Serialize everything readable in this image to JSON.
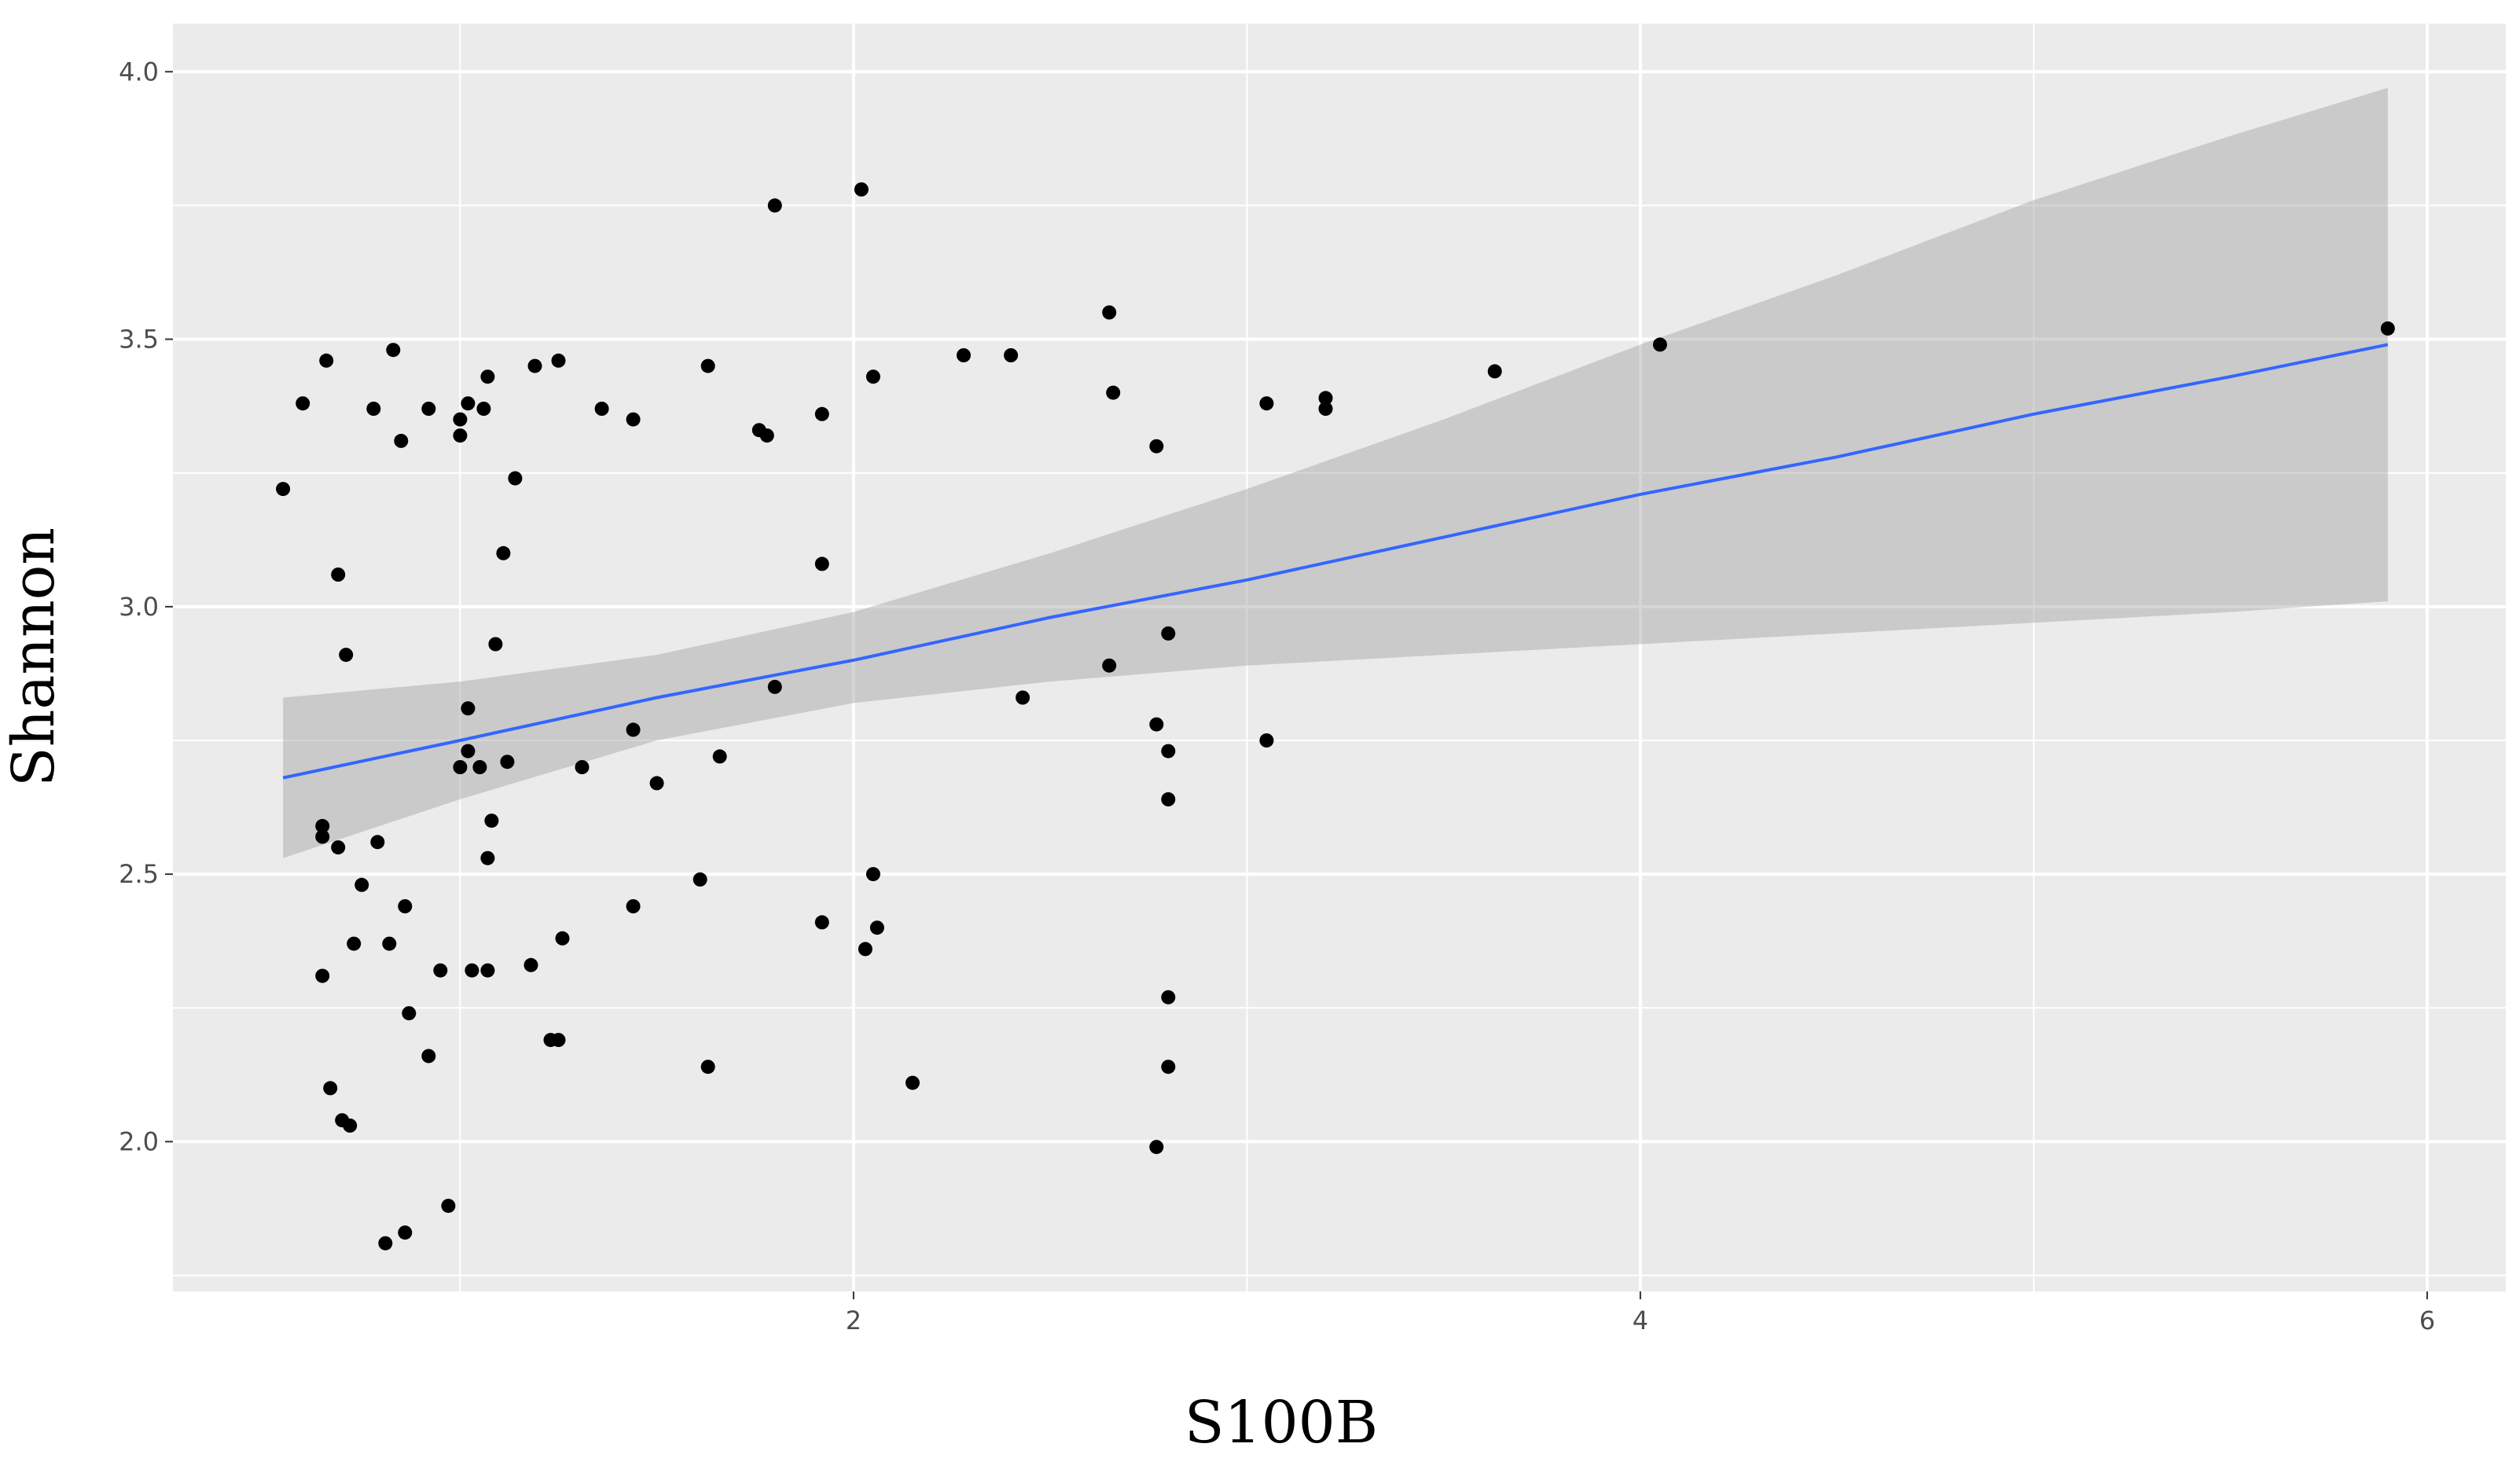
{
  "chart_data": {
    "type": "scatter",
    "title": "",
    "xlabel": "S100B",
    "ylabel": "Shannon",
    "xlim": [
      0.27,
      6.2
    ],
    "ylim": [
      1.72,
      4.09
    ],
    "x_ticks": [
      2,
      4,
      6
    ],
    "x_tick_labels": [
      "2",
      "4",
      "6"
    ],
    "y_ticks": [
      2.0,
      2.5,
      3.0,
      3.5,
      4.0
    ],
    "y_tick_labels": [
      "2.0",
      "2.5",
      "3.0",
      "3.5",
      "4.0"
    ],
    "grid": true,
    "legend": "none",
    "colors": {
      "panel_background": "#ebebeb",
      "grid": "#ffffff",
      "points": "#000000",
      "trend_line": "#3366ff",
      "confidence_band": "#999999"
    },
    "trend": {
      "method": "linear",
      "x": [
        0.55,
        1.0,
        1.5,
        2.0,
        2.5,
        3.0,
        3.5,
        4.0,
        4.5,
        5.0,
        5.5,
        5.9
      ],
      "y": [
        2.68,
        2.75,
        2.83,
        2.9,
        2.98,
        3.05,
        3.13,
        3.21,
        3.28,
        3.36,
        3.43,
        3.49
      ],
      "ci_lower": [
        2.53,
        2.64,
        2.75,
        2.82,
        2.86,
        2.89,
        2.91,
        2.93,
        2.95,
        2.97,
        2.99,
        3.01
      ],
      "ci_upper": [
        2.83,
        2.86,
        2.91,
        2.99,
        3.1,
        3.22,
        3.35,
        3.49,
        3.62,
        3.76,
        3.88,
        3.97
      ]
    },
    "series": [
      {
        "points": [
          [
            0.55,
            3.22
          ],
          [
            0.6,
            3.38
          ],
          [
            0.65,
            2.31
          ],
          [
            0.65,
            2.59
          ],
          [
            0.65,
            2.57
          ],
          [
            0.66,
            3.46
          ],
          [
            0.67,
            2.1
          ],
          [
            0.69,
            3.06
          ],
          [
            0.69,
            2.55
          ],
          [
            0.7,
            2.04
          ],
          [
            0.71,
            2.91
          ],
          [
            0.72,
            2.03
          ],
          [
            0.73,
            2.37
          ],
          [
            0.75,
            2.48
          ],
          [
            0.78,
            3.37
          ],
          [
            0.79,
            2.56
          ],
          [
            0.81,
            1.81
          ],
          [
            0.82,
            2.37
          ],
          [
            0.83,
            3.48
          ],
          [
            0.85,
            3.31
          ],
          [
            0.86,
            2.44
          ],
          [
            0.86,
            1.83
          ],
          [
            0.87,
            2.24
          ],
          [
            0.92,
            3.37
          ],
          [
            0.92,
            2.16
          ],
          [
            0.95,
            2.32
          ],
          [
            0.97,
            1.88
          ],
          [
            1.0,
            3.35
          ],
          [
            1.0,
            3.32
          ],
          [
            1.0,
            2.7
          ],
          [
            1.02,
            3.38
          ],
          [
            1.02,
            2.81
          ],
          [
            1.02,
            2.73
          ],
          [
            1.03,
            2.32
          ],
          [
            1.05,
            2.7
          ],
          [
            1.06,
            3.37
          ],
          [
            1.07,
            3.43
          ],
          [
            1.07,
            2.53
          ],
          [
            1.07,
            2.32
          ],
          [
            1.08,
            2.6
          ],
          [
            1.09,
            2.93
          ],
          [
            1.11,
            3.1
          ],
          [
            1.12,
            2.71
          ],
          [
            1.14,
            3.24
          ],
          [
            1.18,
            2.33
          ],
          [
            1.19,
            3.45
          ],
          [
            1.23,
            2.19
          ],
          [
            1.25,
            3.46
          ],
          [
            1.25,
            2.19
          ],
          [
            1.26,
            2.38
          ],
          [
            1.31,
            2.7
          ],
          [
            1.36,
            3.37
          ],
          [
            1.44,
            3.35
          ],
          [
            1.44,
            2.77
          ],
          [
            1.44,
            2.44
          ],
          [
            1.5,
            2.67
          ],
          [
            1.61,
            2.49
          ],
          [
            1.63,
            3.45
          ],
          [
            1.63,
            2.14
          ],
          [
            1.66,
            2.72
          ],
          [
            1.76,
            3.33
          ],
          [
            1.78,
            3.32
          ],
          [
            1.8,
            3.75
          ],
          [
            1.8,
            2.85
          ],
          [
            1.92,
            3.36
          ],
          [
            1.92,
            3.08
          ],
          [
            1.92,
            2.41
          ],
          [
            2.02,
            3.78
          ],
          [
            2.03,
            2.36
          ],
          [
            2.05,
            3.43
          ],
          [
            2.05,
            2.5
          ],
          [
            2.06,
            2.4
          ],
          [
            2.15,
            2.11
          ],
          [
            2.28,
            3.47
          ],
          [
            2.4,
            3.47
          ],
          [
            2.43,
            2.83
          ],
          [
            2.65,
            3.55
          ],
          [
            2.65,
            2.89
          ],
          [
            2.66,
            3.4
          ],
          [
            2.77,
            3.3
          ],
          [
            2.77,
            2.78
          ],
          [
            2.77,
            1.99
          ],
          [
            2.8,
            2.95
          ],
          [
            2.8,
            2.73
          ],
          [
            2.8,
            2.64
          ],
          [
            2.8,
            2.27
          ],
          [
            2.8,
            2.14
          ],
          [
            3.05,
            3.38
          ],
          [
            3.05,
            2.75
          ],
          [
            3.2,
            3.39
          ],
          [
            3.2,
            3.37
          ],
          [
            3.63,
            3.44
          ],
          [
            4.05,
            3.49
          ],
          [
            5.9,
            3.52
          ]
        ]
      }
    ]
  }
}
